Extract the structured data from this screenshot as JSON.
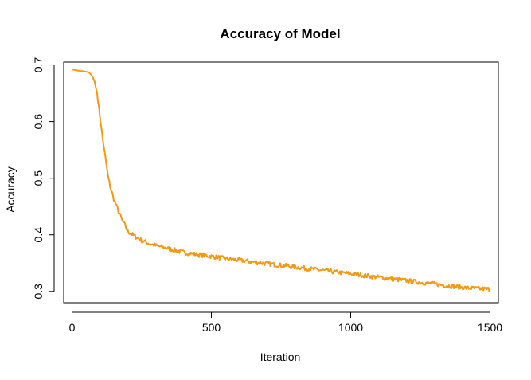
{
  "chart_data": {
    "type": "line",
    "title": "Accuracy of Model",
    "xlabel": "Iteration",
    "ylabel": "Accuracy",
    "xlim": [
      -30,
      1530
    ],
    "ylim": [
      0.28,
      0.705
    ],
    "xticks": [
      0,
      500,
      1000,
      1500
    ],
    "xtick_labels": [
      "0",
      "500",
      "1000",
      "1500"
    ],
    "yticks": [
      0.3,
      0.4,
      0.5,
      0.6,
      0.7
    ],
    "ytick_labels": [
      "0.3",
      "0.4",
      "0.5",
      "0.6",
      "0.7"
    ],
    "grid": false,
    "legend": "none",
    "color": "#f39a12",
    "series": [
      {
        "x": [
          1,
          20,
          40,
          60,
          70,
          80,
          90,
          100,
          110,
          120,
          130,
          140,
          150,
          160,
          170,
          180,
          190,
          200,
          220,
          250,
          275,
          300,
          350,
          400,
          450,
          500,
          550,
          600,
          650,
          700,
          750,
          800,
          850,
          900,
          950,
          1000,
          1050,
          1100,
          1150,
          1200,
          1250,
          1300,
          1350,
          1400,
          1450,
          1500
        ],
        "y": [
          0.692,
          0.69,
          0.689,
          0.687,
          0.682,
          0.672,
          0.65,
          0.61,
          0.57,
          0.535,
          0.5,
          0.48,
          0.463,
          0.45,
          0.438,
          0.425,
          0.417,
          0.406,
          0.399,
          0.39,
          0.385,
          0.381,
          0.375,
          0.369,
          0.365,
          0.362,
          0.358,
          0.355,
          0.352,
          0.349,
          0.346,
          0.343,
          0.34,
          0.337,
          0.334,
          0.331,
          0.328,
          0.325,
          0.322,
          0.319,
          0.316,
          0.313,
          0.31,
          0.307,
          0.305,
          0.304
        ]
      }
    ]
  }
}
